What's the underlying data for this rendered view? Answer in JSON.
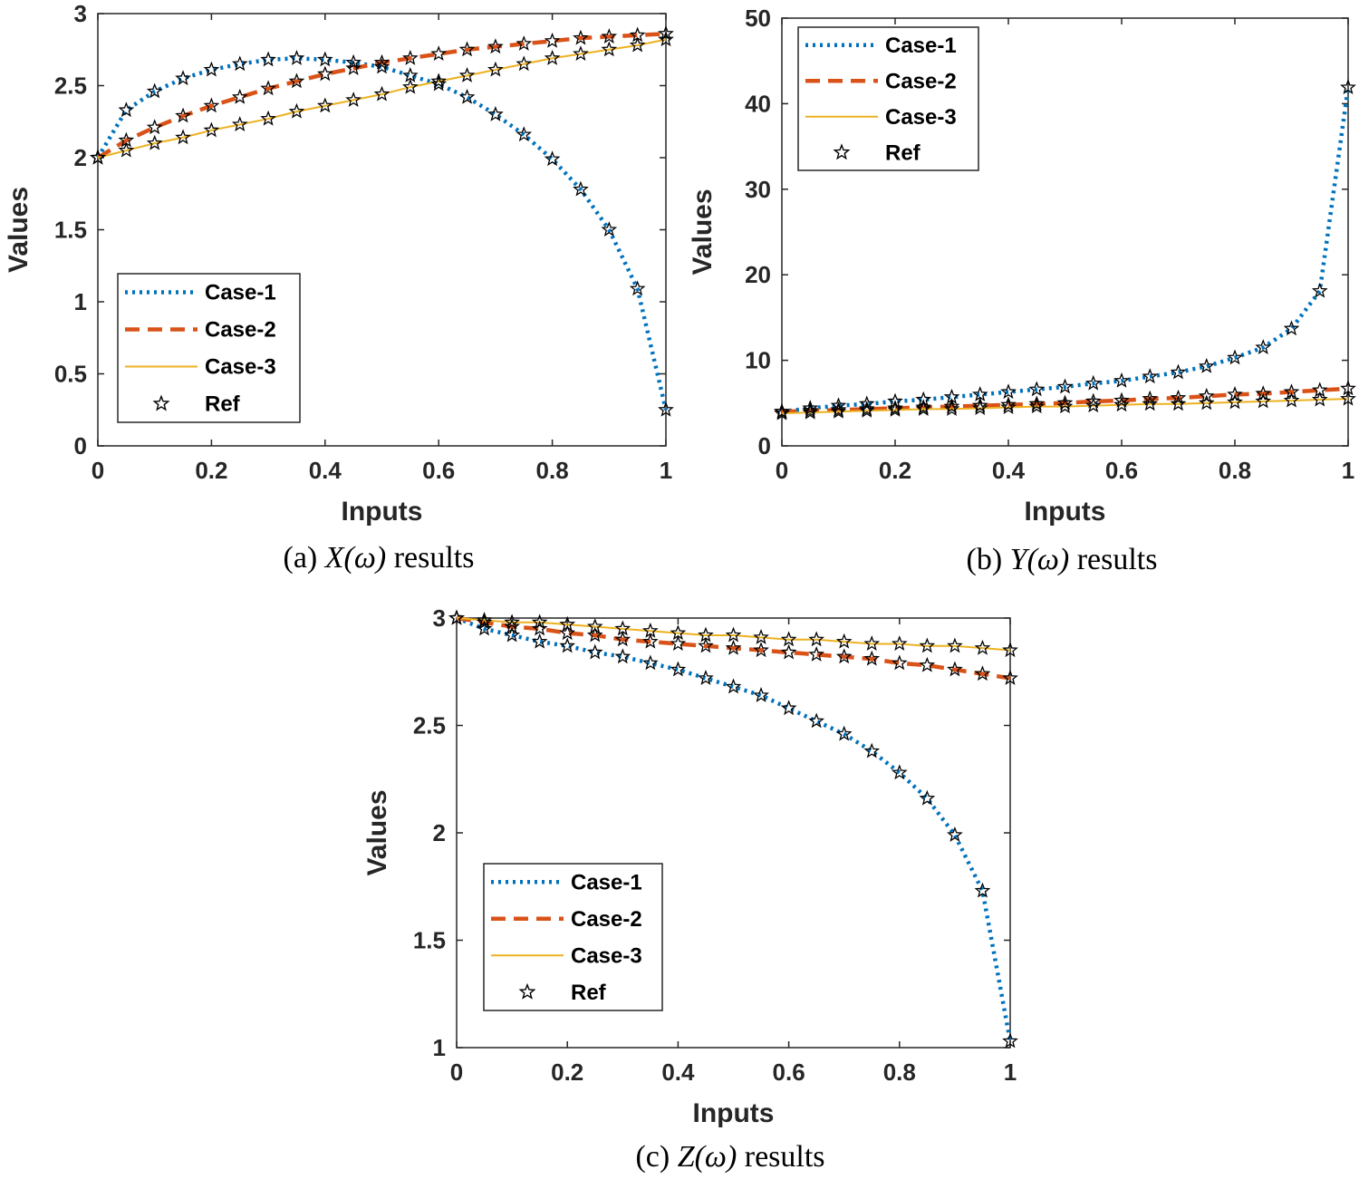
{
  "colors": {
    "case1": "#0072BD",
    "case2": "#D95319",
    "case3": "#EDB120",
    "ref": "#000000",
    "axis": "#262626"
  },
  "chart_data": [
    {
      "type": "line",
      "caption": {
        "prefix": "(a)",
        "math": "X(ω)",
        "suffix": "results"
      },
      "xlabel": "Inputs",
      "ylabel": "Values",
      "xlim": [
        0,
        1
      ],
      "ylim": [
        0,
        3
      ],
      "xticks": [
        "0",
        "0.2",
        "0.4",
        "0.6",
        "0.8",
        "1"
      ],
      "yticks": [
        "0",
        "0.5",
        "1",
        "1.5",
        "2",
        "2.5",
        "3"
      ],
      "legend_position": "bottom-left",
      "legend": [
        "Case-1",
        "Case-2",
        "Case-3",
        "Ref"
      ],
      "x": [
        0,
        0.05,
        0.1,
        0.15,
        0.2,
        0.25,
        0.3,
        0.35,
        0.4,
        0.45,
        0.5,
        0.55,
        0.6,
        0.65,
        0.7,
        0.75,
        0.8,
        0.85,
        0.9,
        0.95,
        1
      ],
      "series": [
        {
          "name": "Case-1",
          "style": "dotted",
          "values": [
            2.0,
            2.33,
            2.46,
            2.55,
            2.61,
            2.65,
            2.68,
            2.69,
            2.68,
            2.66,
            2.63,
            2.57,
            2.51,
            2.42,
            2.3,
            2.16,
            1.99,
            1.78,
            1.5,
            1.09,
            0.25
          ]
        },
        {
          "name": "Case-2",
          "style": "dashed",
          "values": [
            2.0,
            2.12,
            2.21,
            2.29,
            2.36,
            2.42,
            2.48,
            2.53,
            2.58,
            2.62,
            2.66,
            2.69,
            2.72,
            2.75,
            2.77,
            2.79,
            2.81,
            2.83,
            2.84,
            2.85,
            2.86
          ]
        },
        {
          "name": "Case-3",
          "style": "solid",
          "values": [
            2.0,
            2.05,
            2.1,
            2.14,
            2.19,
            2.23,
            2.27,
            2.32,
            2.36,
            2.4,
            2.44,
            2.49,
            2.53,
            2.57,
            2.61,
            2.65,
            2.69,
            2.72,
            2.75,
            2.78,
            2.82
          ]
        }
      ]
    },
    {
      "type": "line",
      "caption": {
        "prefix": "(b)",
        "math": "Y(ω)",
        "suffix": "results"
      },
      "xlabel": "Inputs",
      "ylabel": "Values",
      "xlim": [
        0,
        1
      ],
      "ylim": [
        0,
        50
      ],
      "xticks": [
        "0",
        "0.2",
        "0.4",
        "0.6",
        "0.8",
        "1"
      ],
      "yticks": [
        "0",
        "10",
        "20",
        "30",
        "40",
        "50"
      ],
      "legend_position": "top-left",
      "legend": [
        "Case-1",
        "Case-2",
        "Case-3",
        "Ref"
      ],
      "x": [
        0,
        0.05,
        0.1,
        0.15,
        0.2,
        0.25,
        0.3,
        0.35,
        0.4,
        0.45,
        0.5,
        0.55,
        0.6,
        0.65,
        0.7,
        0.75,
        0.8,
        0.85,
        0.9,
        0.95,
        1
      ],
      "series": [
        {
          "name": "Case-1",
          "style": "dotted",
          "values": [
            4.0,
            4.4,
            4.7,
            4.9,
            5.2,
            5.4,
            5.7,
            6.0,
            6.3,
            6.6,
            6.9,
            7.3,
            7.6,
            8.1,
            8.6,
            9.3,
            10.3,
            11.5,
            13.7,
            18.1,
            41.9
          ]
        },
        {
          "name": "Case-2",
          "style": "dashed",
          "values": [
            4.0,
            4.1,
            4.2,
            4.3,
            4.4,
            4.5,
            4.6,
            4.7,
            4.8,
            4.9,
            5.0,
            5.2,
            5.3,
            5.5,
            5.6,
            5.8,
            6.0,
            6.1,
            6.3,
            6.5,
            6.7
          ]
        },
        {
          "name": "Case-3",
          "style": "solid",
          "values": [
            3.8,
            3.9,
            4.0,
            4.1,
            4.2,
            4.3,
            4.3,
            4.4,
            4.5,
            4.6,
            4.6,
            4.7,
            4.8,
            4.9,
            4.9,
            5.0,
            5.1,
            5.2,
            5.3,
            5.4,
            5.5
          ]
        }
      ]
    },
    {
      "type": "line",
      "caption": {
        "prefix": "(c)",
        "math": "Z(ω)",
        "suffix": "results"
      },
      "xlabel": "Inputs",
      "ylabel": "Values",
      "xlim": [
        0,
        1
      ],
      "ylim": [
        1,
        3
      ],
      "xticks": [
        "0",
        "0.2",
        "0.4",
        "0.6",
        "0.8",
        "1"
      ],
      "yticks": [
        "1",
        "1.5",
        "2",
        "2.5",
        "3"
      ],
      "legend_position": "bottom-left",
      "legend": [
        "Case-1",
        "Case-2",
        "Case-3",
        "Ref"
      ],
      "x": [
        0,
        0.05,
        0.1,
        0.15,
        0.2,
        0.25,
        0.3,
        0.35,
        0.4,
        0.45,
        0.5,
        0.55,
        0.6,
        0.65,
        0.7,
        0.75,
        0.8,
        0.85,
        0.9,
        0.95,
        1
      ],
      "series": [
        {
          "name": "Case-1",
          "style": "dotted",
          "values": [
            3.0,
            2.95,
            2.92,
            2.89,
            2.87,
            2.84,
            2.82,
            2.79,
            2.76,
            2.72,
            2.68,
            2.64,
            2.58,
            2.52,
            2.46,
            2.38,
            2.28,
            2.16,
            1.99,
            1.73,
            1.03
          ]
        },
        {
          "name": "Case-2",
          "style": "dashed",
          "values": [
            3.0,
            2.98,
            2.96,
            2.95,
            2.93,
            2.92,
            2.9,
            2.89,
            2.88,
            2.87,
            2.86,
            2.85,
            2.84,
            2.83,
            2.82,
            2.81,
            2.79,
            2.78,
            2.76,
            2.74,
            2.72
          ]
        },
        {
          "name": "Case-3",
          "style": "solid",
          "values": [
            3.0,
            2.99,
            2.98,
            2.98,
            2.97,
            2.96,
            2.95,
            2.94,
            2.93,
            2.92,
            2.92,
            2.91,
            2.9,
            2.9,
            2.89,
            2.88,
            2.88,
            2.87,
            2.87,
            2.86,
            2.85
          ]
        }
      ]
    }
  ]
}
